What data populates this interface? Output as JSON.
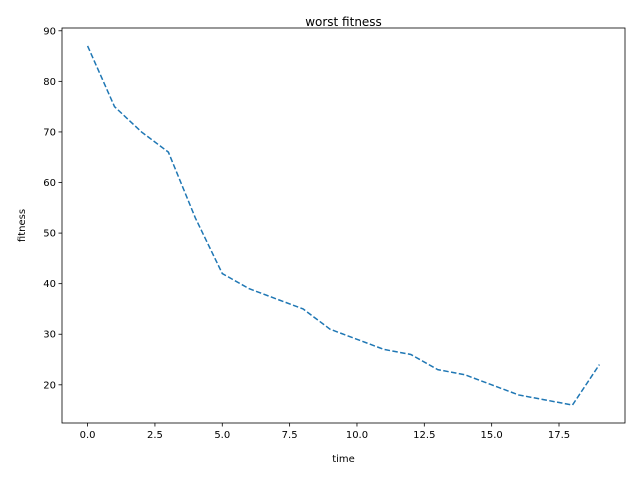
{
  "chart_data": {
    "type": "line",
    "title": "worst fitness",
    "xlabel": "time",
    "ylabel": "fitness",
    "xlim": [
      -0.95,
      19.95
    ],
    "ylim": [
      12.45,
      90.55
    ],
    "xticks": [
      0.0,
      2.5,
      5.0,
      7.5,
      10.0,
      12.5,
      15.0,
      17.5
    ],
    "xtick_labels": [
      "0.0",
      "2.5",
      "5.0",
      "7.5",
      "10.0",
      "12.5",
      "15.0",
      "17.5"
    ],
    "yticks": [
      20,
      30,
      40,
      50,
      60,
      70,
      80,
      90
    ],
    "ytick_labels": [
      "20",
      "30",
      "40",
      "50",
      "60",
      "70",
      "80",
      "90"
    ],
    "grid": false,
    "series": [
      {
        "color": "#1f77b4",
        "line_style": "dashed",
        "x": [
          0,
          1,
          2,
          3,
          4,
          5,
          6,
          7,
          8,
          9,
          10,
          11,
          12,
          13,
          14,
          15,
          16,
          17,
          18,
          19
        ],
        "y": [
          87,
          75,
          70,
          66,
          53,
          42,
          39,
          37,
          35,
          31,
          29,
          27,
          26,
          23,
          22,
          20,
          18,
          17,
          16,
          24
        ]
      }
    ]
  }
}
